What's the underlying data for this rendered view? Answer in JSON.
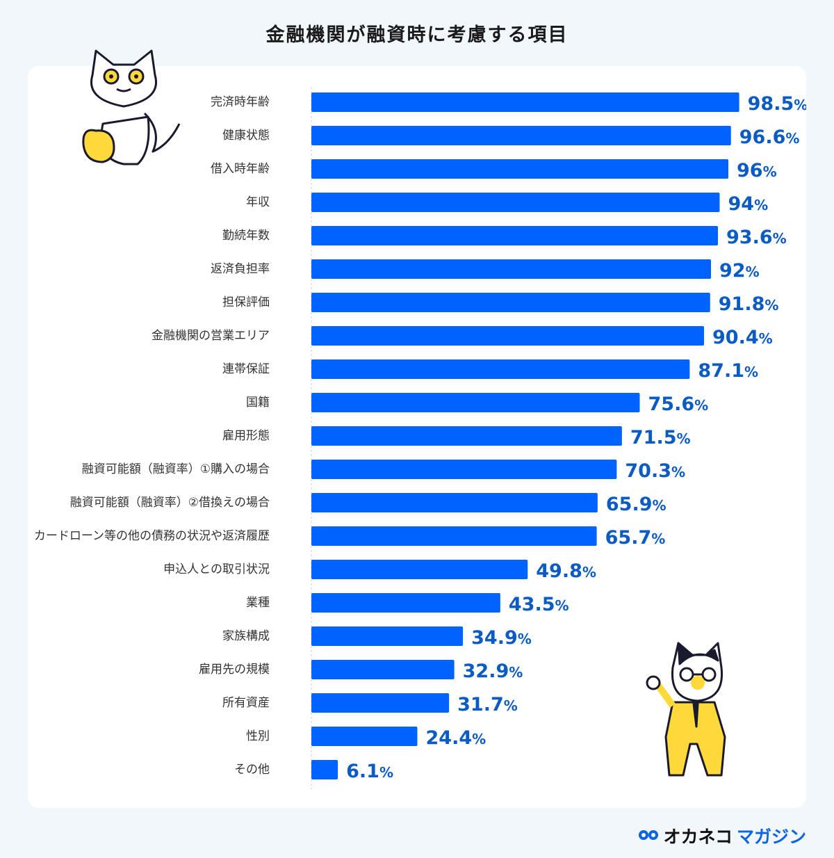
{
  "chart_data": {
    "type": "bar",
    "orientation": "horizontal",
    "title": "金融機関が融資時に考慮する項目",
    "categories": [
      "完済時年齢",
      "健康状態",
      "借入時年齢",
      "年収",
      "勤続年数",
      "返済負担率",
      "担保評価",
      "金融機関の営業エリア",
      "連帯保証",
      "国籍",
      "雇用形態",
      "融資可能額（融資率）①購入の場合",
      "融資可能額（融資率）②借換えの場合",
      "カードローン等の他の債務の状況や返済履歴",
      "申込人との取引状況",
      "業種",
      "家族構成",
      "雇用先の規模",
      "所有資産",
      "性別",
      "その他"
    ],
    "values": [
      98.5,
      96.6,
      96,
      94,
      93.6,
      92,
      91.8,
      90.4,
      87.1,
      75.6,
      71.5,
      70.3,
      65.9,
      65.7,
      49.8,
      43.5,
      34.9,
      32.9,
      31.7,
      24.4,
      6.1
    ],
    "value_labels": [
      "98.5",
      "96.6",
      "96",
      "94",
      "93.6",
      "92",
      "91.8",
      "90.4",
      "87.1",
      "75.6",
      "71.5",
      "70.3",
      "65.9",
      "65.7",
      "49.8",
      "43.5",
      "34.9",
      "32.9",
      "31.7",
      "24.4",
      "6.1"
    ],
    "unit": "%",
    "xlim": [
      0,
      100
    ],
    "grid": false,
    "colors": {
      "bar": "#0063ff",
      "value_text": "#0a5bc4",
      "background": "#f2f7fc"
    }
  },
  "logo": {
    "part1": "オカネコ",
    "part2": "マガジン"
  }
}
